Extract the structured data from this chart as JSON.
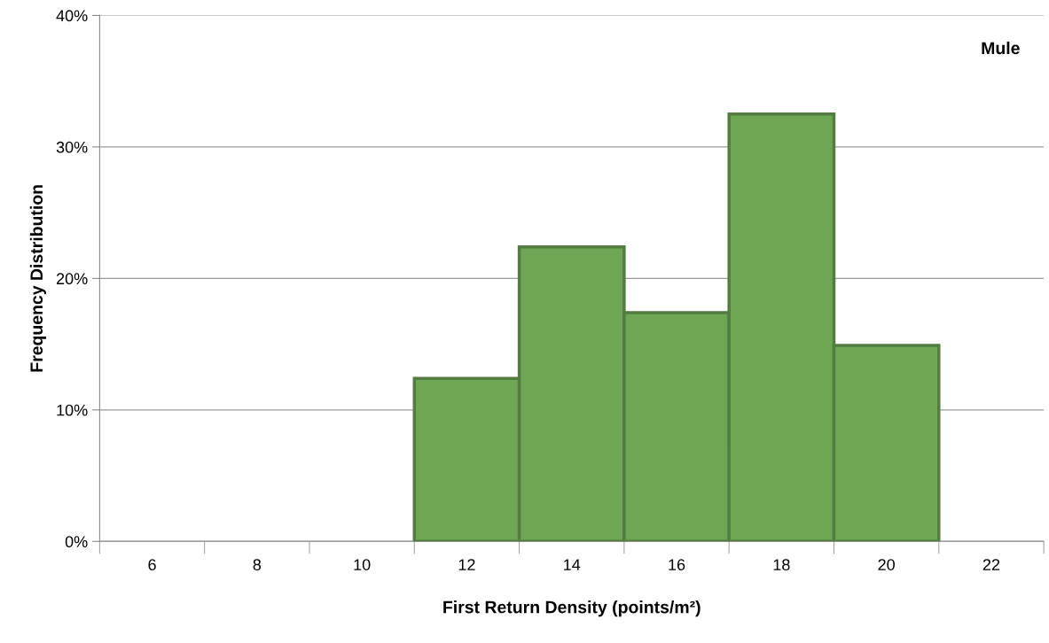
{
  "chart_data": {
    "type": "bar",
    "xlabel": "First Return Density (points/m²)",
    "ylabel": "Frequency Distribution",
    "annotations": [
      "Mule"
    ],
    "categories": [
      "6",
      "8",
      "10",
      "12",
      "14",
      "16",
      "18",
      "20",
      "22"
    ],
    "values": [
      0,
      0,
      0,
      12.4,
      22.4,
      17.4,
      32.5,
      14.9,
      0
    ],
    "color": "#6fa655",
    "ylim": [
      0,
      40
    ],
    "yticks": [
      {
        "value": 0,
        "label": "0%"
      },
      {
        "value": 10,
        "label": "10%"
      },
      {
        "value": 20,
        "label": "20%"
      },
      {
        "value": 30,
        "label": "30%"
      },
      {
        "value": 40,
        "label": "40%"
      }
    ],
    "grid": "y",
    "legend": false
  }
}
